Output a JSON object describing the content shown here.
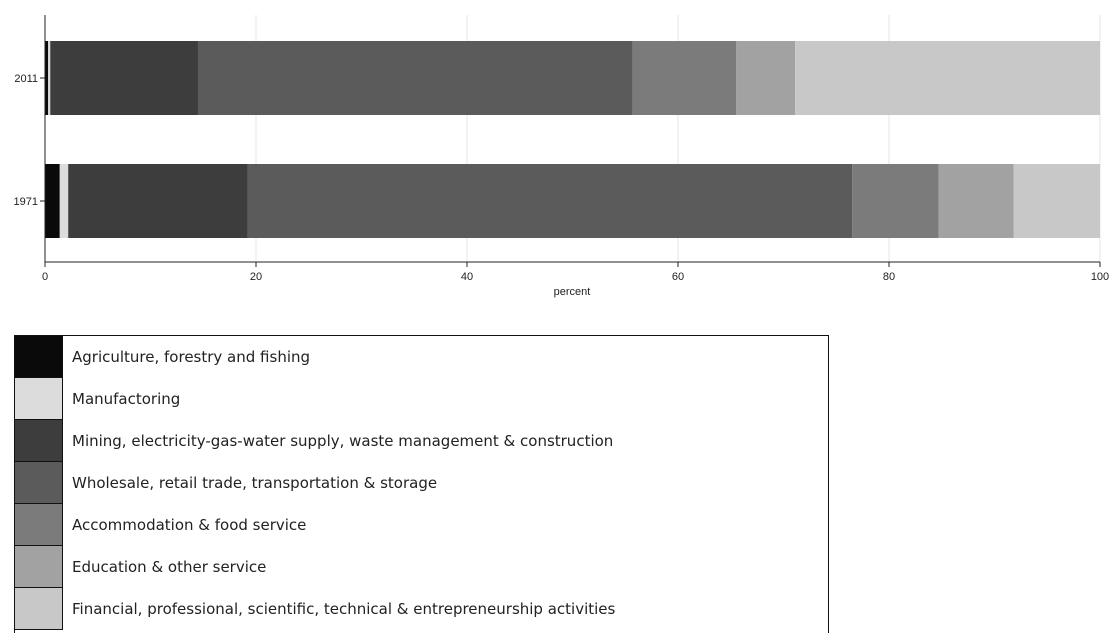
{
  "chart_data": {
    "type": "bar",
    "orientation": "horizontal",
    "stacked": true,
    "categories": [
      "2011",
      "1971"
    ],
    "xlabel": "percent",
    "ylabel": "",
    "xlim": [
      0,
      100
    ],
    "xticks": [
      "0",
      "20",
      "40",
      "60",
      "80",
      "100"
    ],
    "grid": true,
    "legend_position": "bottom-left",
    "series": [
      {
        "name": "Agriculture, forestry and fishing",
        "color": "#0a0a0a",
        "values": [
          0.3,
          1.4
        ]
      },
      {
        "name": "Manufactoring",
        "color": "#dcdcdc",
        "values": [
          0.2,
          0.8
        ]
      },
      {
        "name": "Mining, electricity-gas-water supply, waste management & construction",
        "color": "#3d3d3d",
        "values": [
          14.0,
          17.0
        ]
      },
      {
        "name": "Wholesale, retail trade, transportation & storage",
        "color": "#5b5b5b",
        "values": [
          41.2,
          57.3
        ]
      },
      {
        "name": "Accommodation & food service",
        "color": "#7b7b7b",
        "values": [
          9.8,
          8.2
        ]
      },
      {
        "name": "Education & other service",
        "color": "#a2a2a2",
        "values": [
          5.6,
          7.1
        ]
      },
      {
        "name": "Financial, professional, scientific, technical & entrepreneurship activities",
        "color": "#c8c8c8",
        "values": [
          28.9,
          8.2
        ]
      }
    ]
  }
}
